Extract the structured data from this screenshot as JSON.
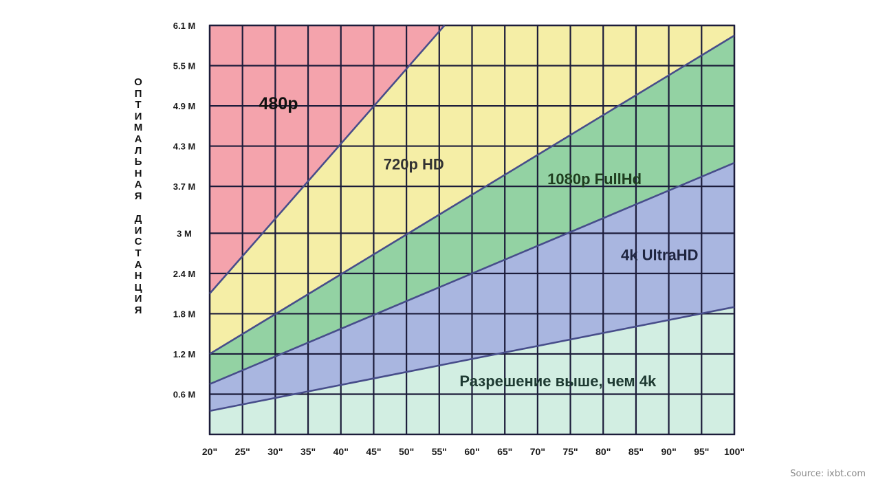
{
  "chart_data": {
    "type": "area",
    "ylabel": "Оптимальная дистанция",
    "xlim": [
      20,
      100
    ],
    "ylim": [
      0,
      6.1
    ],
    "x_ticks": [
      {
        "v": 20,
        "label": "20\""
      },
      {
        "v": 25,
        "label": "25\""
      },
      {
        "v": 30,
        "label": "30\""
      },
      {
        "v": 35,
        "label": "35\""
      },
      {
        "v": 40,
        "label": "40\""
      },
      {
        "v": 45,
        "label": "45\""
      },
      {
        "v": 50,
        "label": "50\""
      },
      {
        "v": 55,
        "label": "55\""
      },
      {
        "v": 60,
        "label": "60\""
      },
      {
        "v": 65,
        "label": "65\""
      },
      {
        "v": 70,
        "label": "70\""
      },
      {
        "v": 75,
        "label": "75\""
      },
      {
        "v": 80,
        "label": "80\""
      },
      {
        "v": 85,
        "label": "85\""
      },
      {
        "v": 90,
        "label": "90\""
      },
      {
        "v": 95,
        "label": "95\""
      },
      {
        "v": 100,
        "label": "100\""
      }
    ],
    "y_ticks": [
      {
        "v": 0.6,
        "label": "0.6 M"
      },
      {
        "v": 1.2,
        "label": "1.2 M"
      },
      {
        "v": 1.8,
        "label": "1.8 M"
      },
      {
        "v": 2.4,
        "label": "2.4 M"
      },
      {
        "v": 3.0,
        "label": "3 M"
      },
      {
        "v": 3.7,
        "label": "3.7 M"
      },
      {
        "v": 4.3,
        "label": "4.3 M"
      },
      {
        "v": 4.9,
        "label": "4.9 M"
      },
      {
        "v": 5.5,
        "label": "5.5 M"
      },
      {
        "v": 6.1,
        "label": "6.1 M"
      }
    ],
    "boundaries": [
      {
        "id": "b480",
        "x": [
          20,
          55.8
        ],
        "y": [
          2.1,
          6.1
        ]
      },
      {
        "id": "b720",
        "x": [
          20,
          100
        ],
        "y": [
          1.2,
          5.95
        ]
      },
      {
        "id": "b1080",
        "x": [
          20,
          100
        ],
        "y": [
          0.75,
          4.05
        ]
      },
      {
        "id": "b4k",
        "x": [
          20,
          100
        ],
        "y": [
          0.35,
          1.9
        ]
      }
    ],
    "regions": [
      {
        "name": "480p",
        "color": "#f4a3ac",
        "label_color": "#111111",
        "label_at": [
          27.5,
          4.85
        ]
      },
      {
        "name": "720p HD",
        "color": "#f5eea6",
        "label_color": "#333333",
        "label_at": [
          46.5,
          3.95
        ]
      },
      {
        "name": "1080p FullHd",
        "color": "#93d2a3",
        "label_color": "#1f3d1f",
        "label_at": [
          71.5,
          3.73
        ]
      },
      {
        "name": "4k UltraHD",
        "color": "#a9b6e0",
        "label_color": "#1f2540",
        "label_at": [
          82.7,
          2.6
        ]
      },
      {
        "name": "Разрешение выше, чем 4k",
        "color": "#d2eee2",
        "label_color": "#1e3a32",
        "label_at": [
          58.1,
          0.72
        ]
      }
    ],
    "grid": true,
    "grid_color": "#1c1c3a",
    "boundary_color": "#474d8a"
  },
  "source": "Source: ixbt.com"
}
